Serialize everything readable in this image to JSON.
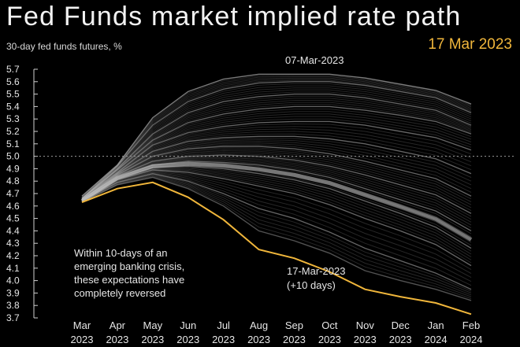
{
  "header": {
    "title": "Fed Funds market implied rate path",
    "subtitle": "30-day fed funds futures, %",
    "date": "17 Mar 2023"
  },
  "colors": {
    "highlight": "#f0b63b",
    "background": "#000000",
    "paths": "#9a9a9a"
  },
  "chart_data": {
    "type": "line",
    "title": "Fed Funds market implied rate path",
    "ylabel": "30-day fed funds futures, %",
    "ylim": [
      3.7,
      5.7
    ],
    "y_ticks": [
      3.7,
      3.8,
      3.9,
      4.0,
      4.1,
      4.2,
      4.3,
      4.4,
      4.5,
      4.6,
      4.7,
      4.8,
      4.9,
      5.0,
      5.1,
      5.2,
      5.3,
      5.4,
      5.5,
      5.6,
      5.7
    ],
    "x_labels": [
      [
        "Mar",
        "2023"
      ],
      [
        "Apr",
        "2023"
      ],
      [
        "May",
        "2023"
      ],
      [
        "Jun",
        "2023"
      ],
      [
        "Jul",
        "2023"
      ],
      [
        "Aug",
        "2023"
      ],
      [
        "Sep",
        "2023"
      ],
      [
        "Oct",
        "2023"
      ],
      [
        "Nov",
        "2023"
      ],
      [
        "Dec",
        "2023"
      ],
      [
        "Jan",
        "2024"
      ],
      [
        "Feb",
        "2024"
      ]
    ],
    "reference_line": {
      "y": 5.0,
      "style": "dotted"
    },
    "highlight": {
      "values": [
        4.63,
        4.74,
        4.79,
        4.67,
        4.49,
        4.25,
        4.18,
        4.07,
        3.93,
        3.87,
        3.82,
        3.73
      ]
    },
    "path_bands": [
      {
        "values": [
          4.68,
          4.93,
          5.31,
          5.52,
          5.62,
          5.66,
          5.66,
          5.66,
          5.63,
          5.58,
          5.53,
          5.42
        ]
      },
      {
        "values": [
          4.66,
          4.92,
          5.25,
          5.44,
          5.54,
          5.59,
          5.6,
          5.6,
          5.57,
          5.52,
          5.47,
          5.35
        ]
      },
      {
        "values": [
          4.66,
          4.9,
          5.18,
          5.35,
          5.44,
          5.48,
          5.5,
          5.5,
          5.47,
          5.42,
          5.37,
          5.25
        ]
      },
      {
        "values": [
          4.66,
          4.89,
          5.13,
          5.27,
          5.34,
          5.38,
          5.4,
          5.4,
          5.37,
          5.33,
          5.28,
          5.18
        ]
      },
      {
        "values": [
          4.66,
          4.87,
          5.09,
          5.19,
          5.24,
          5.27,
          5.28,
          5.28,
          5.25,
          5.2,
          5.15,
          5.05
        ]
      },
      {
        "values": [
          4.65,
          4.86,
          5.04,
          5.12,
          5.15,
          5.16,
          5.16,
          5.14,
          5.1,
          5.04,
          4.98,
          4.86
        ]
      },
      {
        "values": [
          4.65,
          4.85,
          5.0,
          5.06,
          5.08,
          5.08,
          5.06,
          5.02,
          4.96,
          4.89,
          4.82,
          4.68
        ]
      },
      {
        "values": [
          4.65,
          4.84,
          4.96,
          5.0,
          5.01,
          5.0,
          4.97,
          4.92,
          4.85,
          4.77,
          4.69,
          4.54
        ]
      },
      {
        "values": [
          4.64,
          4.83,
          4.93,
          4.96,
          4.95,
          4.93,
          4.89,
          4.83,
          4.74,
          4.65,
          4.56,
          4.4
        ]
      },
      {
        "values": [
          4.64,
          4.82,
          4.91,
          4.92,
          4.9,
          4.86,
          4.81,
          4.74,
          4.64,
          4.54,
          4.43,
          4.26
        ]
      },
      {
        "values": [
          4.64,
          4.81,
          4.89,
          4.87,
          4.82,
          4.76,
          4.7,
          4.61,
          4.5,
          4.4,
          4.29,
          4.12
        ]
      },
      {
        "values": [
          4.64,
          4.79,
          4.86,
          4.8,
          4.7,
          4.58,
          4.5,
          4.39,
          4.26,
          4.16,
          4.06,
          3.93
        ]
      },
      {
        "values": [
          4.63,
          4.77,
          4.83,
          4.74,
          4.6,
          4.4,
          4.32,
          4.22,
          4.08,
          4.0,
          3.93,
          3.84
        ]
      }
    ],
    "label_top": "07-Mar-2023",
    "label_bottom": [
      "17-Mar-2023",
      "(+10 days)"
    ],
    "annotation": [
      "Within 10-days of an",
      "emerging banking crisis,",
      "these expectations have",
      "completely reversed"
    ]
  }
}
